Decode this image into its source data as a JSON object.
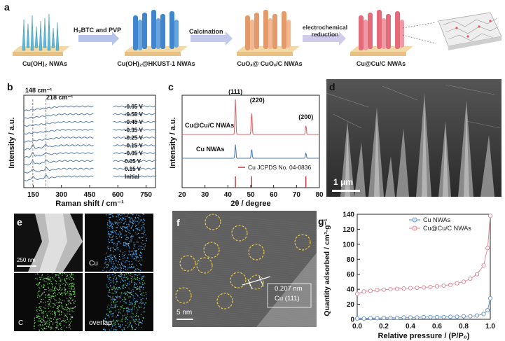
{
  "panel_a": {
    "label": "a",
    "stages": [
      "Cu(OH)₂ NWAs",
      "Cu(OH)₂@HKUST-1 NWAs",
      "CuOₓ@ CuOₓ/C NWAs",
      "Cu@Cu/C NWAs"
    ],
    "arrow1": "H₃BTC and PVP",
    "arrow2": "Calcination",
    "arrow3_line1": "electrochemical",
    "arrow3_line2": "reduction",
    "colors": {
      "stage1": "#5fb9d8",
      "stage2": "#3f86cf",
      "stage3": "#e49b6c",
      "stage4": "#e36b7a",
      "base": "#f2d29b"
    }
  },
  "chart_data": [
    {
      "panel": "b",
      "type": "line",
      "xlabel": "Raman shift / cm⁻¹",
      "ylabel": "Intensity / a.u.",
      "xlim": [
        100,
        800
      ],
      "xticks": [
        "150",
        "300",
        "450",
        "600",
        "750"
      ],
      "annotations": [
        "148 cm⁻¹",
        "218 cm⁻¹"
      ],
      "series_labels": [
        "-0.65 V",
        "-0.55 V",
        "-0.45 V",
        "-0.35 V",
        "-0.25 V",
        "-0.15 V",
        "-0.05 V",
        "0.05 V",
        "0.15 V",
        "Initial"
      ],
      "line_color": "#5b7ea8"
    },
    {
      "panel": "c",
      "type": "line",
      "xlabel": "2θ / degree",
      "ylabel": "Intensity / a.u.",
      "xlim": [
        20,
        80
      ],
      "xticks": [
        "20",
        "30",
        "40",
        "50",
        "60",
        "70",
        "80"
      ],
      "series": [
        {
          "name": "Cu@Cu/C NWAs",
          "color": "#d9686d",
          "peaks": [
            43.3,
            50.4,
            74.1
          ]
        },
        {
          "name": "Cu NWAs",
          "color": "#4b7fc2",
          "peaks": [
            43.3,
            50.4,
            74.1
          ]
        }
      ],
      "reference": {
        "name": "Cu JCPDS No. 04-0836",
        "color": "#c0393b",
        "positions": [
          43.3,
          50.4,
          74.1
        ]
      },
      "peak_labels": [
        "(111)",
        "(220)",
        "(200)"
      ]
    },
    {
      "panel": "g",
      "type": "scatter",
      "xlabel": "Relative pressure / (P/P₀)",
      "ylabel": "Quantity adsorbed / cm³·g⁻¹",
      "xlim": [
        0.0,
        1.0
      ],
      "ylim": [
        0,
        140
      ],
      "xticks": [
        "0.0",
        "0.2",
        "0.4",
        "0.6",
        "0.8",
        "1.0"
      ],
      "yticks": [
        "0",
        "20",
        "40",
        "60",
        "80",
        "100",
        "120",
        "140"
      ],
      "legend_position": "top-right",
      "series": [
        {
          "name": "Cu NWAs",
          "color": "#6f9bd0",
          "x": [
            0.0,
            0.05,
            0.1,
            0.15,
            0.2,
            0.25,
            0.3,
            0.35,
            0.4,
            0.45,
            0.5,
            0.55,
            0.6,
            0.65,
            0.7,
            0.75,
            0.8,
            0.85,
            0.9,
            0.95,
            0.98,
            1.0
          ],
          "y": [
            1,
            1,
            1.5,
            1.5,
            2,
            2,
            2,
            2.5,
            2.5,
            2.5,
            3,
            3,
            3,
            3,
            3.5,
            3.5,
            4,
            4,
            5,
            7,
            12,
            28
          ]
        },
        {
          "name": "Cu@Cu/C NWAs",
          "color": "#e08d9b",
          "x": [
            0.0,
            0.05,
            0.1,
            0.15,
            0.2,
            0.25,
            0.3,
            0.35,
            0.4,
            0.45,
            0.5,
            0.55,
            0.6,
            0.65,
            0.7,
            0.75,
            0.8,
            0.85,
            0.9,
            0.95,
            0.98,
            1.0
          ],
          "y": [
            34,
            37,
            38,
            39,
            39.5,
            40,
            40.5,
            41,
            41.5,
            42,
            42.5,
            43,
            44,
            45,
            46,
            48,
            50,
            54,
            60,
            72,
            95,
            138
          ]
        }
      ]
    }
  ],
  "panel_d": {
    "label": "d",
    "scalebar": "1 μm"
  },
  "panel_e": {
    "label": "e",
    "scalebar": "250 nm",
    "maps": [
      "Cu",
      "C",
      "overlap"
    ]
  },
  "panel_f": {
    "label": "f",
    "scalebar": "5 nm",
    "spacing": "0.207 nm",
    "plane": "Cu (111)"
  }
}
